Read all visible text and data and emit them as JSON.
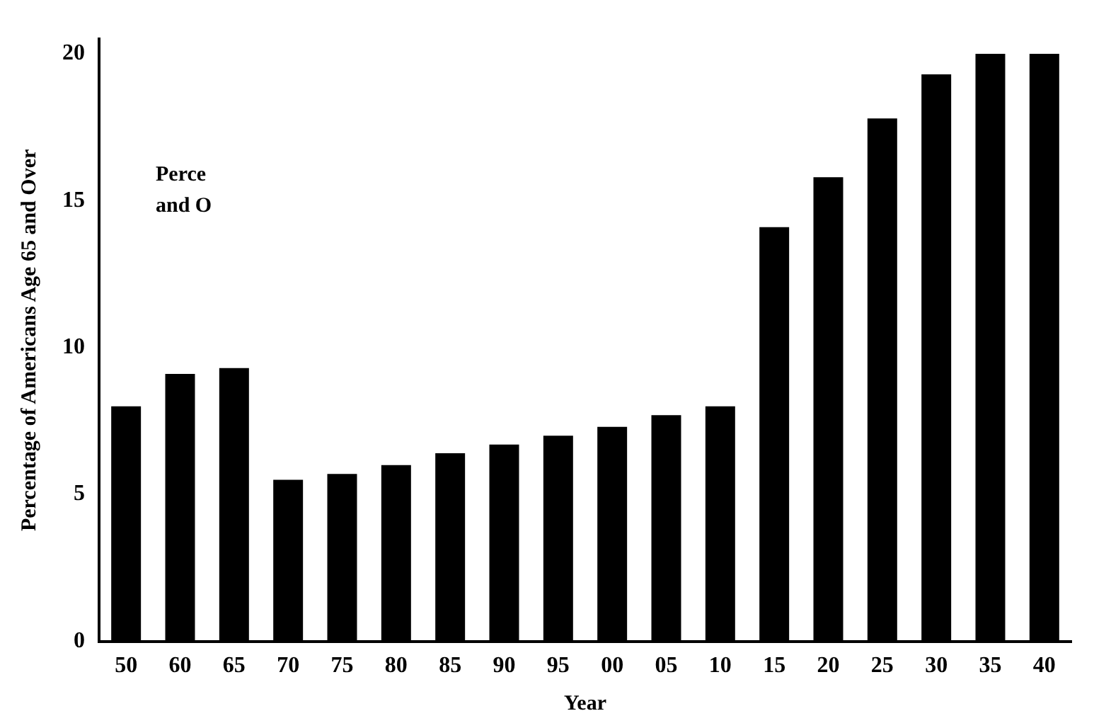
{
  "chart_data": {
    "type": "bar",
    "xlabel": "Year",
    "ylabel": "Percentage of Americans Age 65 and Over",
    "categories": [
      "50",
      "60",
      "65",
      "70",
      "75",
      "80",
      "85",
      "90",
      "95",
      "00",
      "05",
      "10",
      "15",
      "20",
      "25",
      "30",
      "35",
      "40"
    ],
    "values": [
      8.0,
      9.1,
      9.3,
      5.5,
      5.7,
      6.0,
      6.4,
      6.7,
      7.0,
      7.3,
      7.7,
      8.0,
      14.1,
      15.8,
      17.8,
      19.3,
      20.0,
      20.0
    ],
    "color": "#000000",
    "ylim": [
      0,
      20.5
    ],
    "yticks": [
      0,
      5,
      10,
      15,
      20
    ],
    "grid": false,
    "legend": false,
    "annotations": [
      "Perce",
      "and O"
    ]
  }
}
